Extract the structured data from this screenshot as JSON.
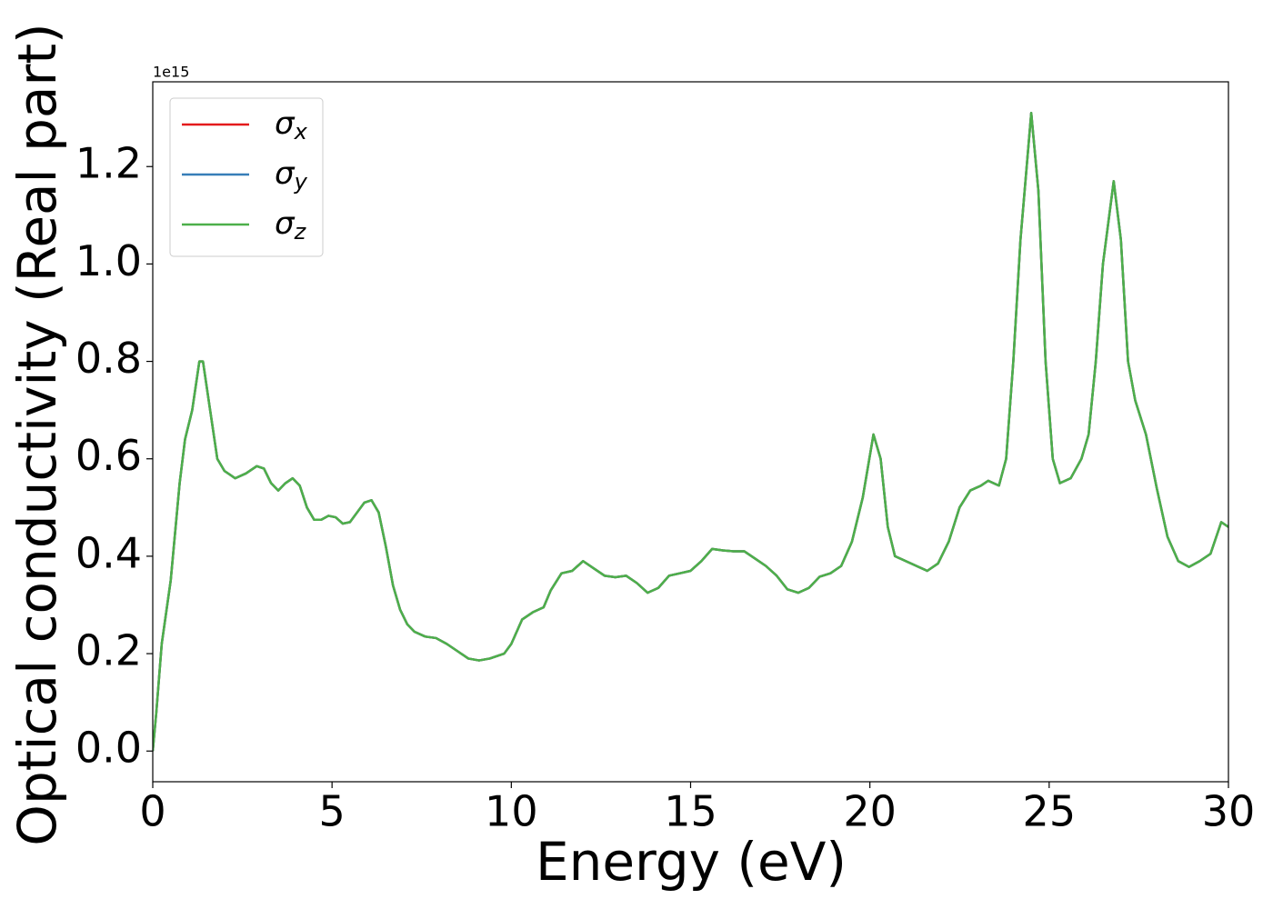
{
  "chart_data": {
    "type": "line",
    "xlabel": "Energy (eV)",
    "ylabel": "Optical conductivity (Real part)",
    "y_offset_label": "1e15",
    "xlim": [
      0,
      30
    ],
    "xticks": [
      0,
      5,
      10,
      15,
      20,
      25,
      30
    ],
    "ylim": [
      -0.063,
      1.374
    ],
    "yticks": [
      {
        "value": 0,
        "label": "0.0"
      },
      0.2,
      0.4,
      0.6,
      0.8,
      {
        "value": 1,
        "label": "1.0"
      },
      1.2
    ],
    "legend": "upper left",
    "grid": false,
    "x": [
      0,
      0.1,
      0.25,
      0.5,
      0.75,
      0.9,
      1.1,
      1.3,
      1.4,
      1.6,
      1.8,
      2.0,
      2.3,
      2.6,
      2.9,
      3.1,
      3.3,
      3.5,
      3.7,
      3.9,
      4.1,
      4.3,
      4.5,
      4.7,
      4.9,
      5.1,
      5.3,
      5.5,
      5.7,
      5.9,
      6.1,
      6.3,
      6.5,
      6.7,
      6.9,
      7.1,
      7.3,
      7.6,
      7.9,
      8.2,
      8.5,
      8.8,
      9.1,
      9.4,
      9.8,
      10.0,
      10.3,
      10.6,
      10.9,
      11.1,
      11.4,
      11.7,
      12.0,
      12.3,
      12.6,
      12.9,
      13.2,
      13.5,
      13.8,
      14.1,
      14.4,
      14.7,
      15.0,
      15.3,
      15.6,
      15.9,
      16.2,
      16.5,
      16.8,
      17.1,
      17.4,
      17.7,
      18.0,
      18.3,
      18.6,
      18.9,
      19.2,
      19.5,
      19.8,
      20.1,
      20.3,
      20.5,
      20.7,
      21.0,
      21.3,
      21.6,
      21.9,
      22.2,
      22.5,
      22.8,
      23.1,
      23.3,
      23.6,
      23.8,
      24.0,
      24.2,
      24.5,
      24.7,
      24.9,
      25.1,
      25.3,
      25.6,
      25.9,
      26.1,
      26.3,
      26.5,
      26.8,
      27.0,
      27.2,
      27.4,
      27.7,
      28.0,
      28.3,
      28.6,
      28.9,
      29.2,
      29.5,
      29.8,
      30.0
    ],
    "series": [
      {
        "name": "σx",
        "color": "#e41a1c",
        "values": [
          0.0,
          0.08,
          0.22,
          0.35,
          0.55,
          0.64,
          0.7,
          0.8,
          0.8,
          0.7,
          0.6,
          0.575,
          0.56,
          0.57,
          0.585,
          0.58,
          0.55,
          0.535,
          0.55,
          0.56,
          0.545,
          0.5,
          0.475,
          0.475,
          0.483,
          0.48,
          0.467,
          0.47,
          0.49,
          0.51,
          0.515,
          0.49,
          0.42,
          0.34,
          0.29,
          0.26,
          0.245,
          0.235,
          0.232,
          0.22,
          0.205,
          0.19,
          0.186,
          0.19,
          0.2,
          0.22,
          0.27,
          0.285,
          0.295,
          0.33,
          0.365,
          0.37,
          0.39,
          0.375,
          0.36,
          0.357,
          0.36,
          0.345,
          0.325,
          0.335,
          0.36,
          0.365,
          0.37,
          0.39,
          0.415,
          0.412,
          0.41,
          0.41,
          0.395,
          0.38,
          0.36,
          0.332,
          0.325,
          0.335,
          0.358,
          0.365,
          0.38,
          0.43,
          0.52,
          0.65,
          0.6,
          0.46,
          0.4,
          0.39,
          0.38,
          0.37,
          0.385,
          0.43,
          0.5,
          0.535,
          0.545,
          0.555,
          0.545,
          0.6,
          0.8,
          1.05,
          1.31,
          1.15,
          0.8,
          0.6,
          0.55,
          0.56,
          0.6,
          0.65,
          0.8,
          1.0,
          1.17,
          1.05,
          0.8,
          0.72,
          0.65,
          0.54,
          0.44,
          0.39,
          0.378,
          0.39,
          0.405,
          0.47,
          0.46
        ]
      },
      {
        "name": "σy",
        "color": "#377eb8",
        "values": [
          0.0,
          0.08,
          0.22,
          0.35,
          0.55,
          0.64,
          0.7,
          0.8,
          0.8,
          0.7,
          0.6,
          0.575,
          0.56,
          0.57,
          0.585,
          0.58,
          0.55,
          0.535,
          0.55,
          0.56,
          0.545,
          0.5,
          0.475,
          0.475,
          0.483,
          0.48,
          0.467,
          0.47,
          0.49,
          0.51,
          0.515,
          0.49,
          0.42,
          0.34,
          0.29,
          0.26,
          0.245,
          0.235,
          0.232,
          0.22,
          0.205,
          0.19,
          0.186,
          0.19,
          0.2,
          0.22,
          0.27,
          0.285,
          0.295,
          0.33,
          0.365,
          0.37,
          0.39,
          0.375,
          0.36,
          0.357,
          0.36,
          0.345,
          0.325,
          0.335,
          0.36,
          0.365,
          0.37,
          0.39,
          0.415,
          0.412,
          0.41,
          0.41,
          0.395,
          0.38,
          0.36,
          0.332,
          0.325,
          0.335,
          0.358,
          0.365,
          0.38,
          0.43,
          0.52,
          0.65,
          0.6,
          0.46,
          0.4,
          0.39,
          0.38,
          0.37,
          0.385,
          0.43,
          0.5,
          0.535,
          0.545,
          0.555,
          0.545,
          0.6,
          0.8,
          1.05,
          1.31,
          1.15,
          0.8,
          0.6,
          0.55,
          0.56,
          0.6,
          0.65,
          0.8,
          1.0,
          1.17,
          1.05,
          0.8,
          0.72,
          0.65,
          0.54,
          0.44,
          0.39,
          0.378,
          0.39,
          0.405,
          0.47,
          0.46
        ]
      },
      {
        "name": "σz",
        "color": "#4daf4a",
        "values": [
          0.0,
          0.08,
          0.22,
          0.35,
          0.55,
          0.64,
          0.7,
          0.8,
          0.8,
          0.7,
          0.6,
          0.575,
          0.56,
          0.57,
          0.585,
          0.58,
          0.55,
          0.535,
          0.55,
          0.56,
          0.545,
          0.5,
          0.475,
          0.475,
          0.483,
          0.48,
          0.467,
          0.47,
          0.49,
          0.51,
          0.515,
          0.49,
          0.42,
          0.34,
          0.29,
          0.26,
          0.245,
          0.235,
          0.232,
          0.22,
          0.205,
          0.19,
          0.186,
          0.19,
          0.2,
          0.22,
          0.27,
          0.285,
          0.295,
          0.33,
          0.365,
          0.37,
          0.39,
          0.375,
          0.36,
          0.357,
          0.36,
          0.345,
          0.325,
          0.335,
          0.36,
          0.365,
          0.37,
          0.39,
          0.415,
          0.412,
          0.41,
          0.41,
          0.395,
          0.38,
          0.36,
          0.332,
          0.325,
          0.335,
          0.358,
          0.365,
          0.38,
          0.43,
          0.52,
          0.65,
          0.6,
          0.46,
          0.4,
          0.39,
          0.38,
          0.37,
          0.385,
          0.43,
          0.5,
          0.535,
          0.545,
          0.555,
          0.545,
          0.6,
          0.8,
          1.05,
          1.31,
          1.15,
          0.8,
          0.6,
          0.55,
          0.56,
          0.6,
          0.65,
          0.8,
          1.0,
          1.17,
          1.05,
          0.8,
          0.72,
          0.65,
          0.54,
          0.44,
          0.39,
          0.378,
          0.39,
          0.405,
          0.47,
          0.46
        ]
      }
    ]
  }
}
